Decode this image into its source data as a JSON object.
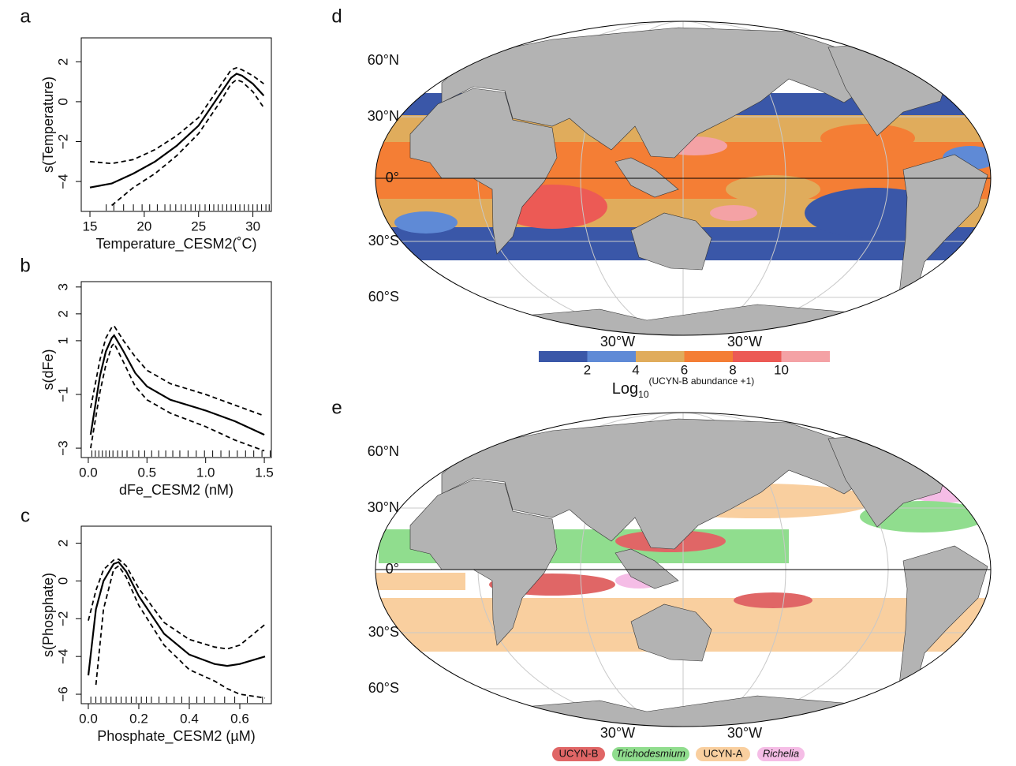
{
  "chart_data": [
    {
      "type": "line",
      "panel": "a",
      "xlabel": "Temperature_CESM2(˚C)",
      "ylabel": "s(Temperature)",
      "xlim": [
        14.2,
        31.7
      ],
      "ylim": [
        -5.5,
        3.2
      ],
      "xticks": [
        15,
        20,
        25,
        30
      ],
      "yticks": [
        {
          "value": -4,
          "label": "−4"
        },
        {
          "value": -2,
          "label": "−2"
        },
        0,
        2
      ],
      "x": [
        15,
        17,
        19,
        21,
        23,
        25,
        27,
        28,
        28.5,
        29,
        30,
        31
      ],
      "series": [
        {
          "color": "#000000",
          "dashed": false,
          "values": [
            -4.3,
            -4.1,
            -3.6,
            -3.0,
            -2.2,
            -1.2,
            0.4,
            1.2,
            1.4,
            1.3,
            0.9,
            0.3
          ]
        },
        {
          "color": "#000000",
          "dashed": true,
          "values": [
            -3.0,
            -3.1,
            -2.9,
            -2.4,
            -1.7,
            -0.8,
            0.8,
            1.6,
            1.7,
            1.6,
            1.3,
            0.9
          ]
        },
        {
          "color": "#000000",
          "dashed": true,
          "values": [
            null,
            -5.2,
            -4.3,
            -3.6,
            -2.7,
            -1.6,
            0.0,
            0.9,
            1.1,
            1.0,
            0.5,
            -0.3
          ]
        }
      ],
      "rug": [
        16.5,
        17.2,
        18.1,
        19.0,
        19.8,
        20.5,
        21.2,
        21.9,
        22.4,
        22.9,
        23.4,
        23.8,
        24.3,
        24.7,
        25.1,
        25.6,
        26.0,
        26.4,
        26.8,
        27.2,
        27.6,
        28.0,
        28.4,
        28.8,
        29.2,
        29.6,
        30.0,
        30.4,
        30.8,
        31.2,
        31.5
      ]
    },
    {
      "type": "line",
      "panel": "b",
      "xlabel": "dFe_CESM2 (nM)",
      "ylabel": "s(dFe)",
      "xlim": [
        -0.06,
        1.56
      ],
      "ylim": [
        -3.35,
        3.2
      ],
      "xticks": [
        {
          "value": 0,
          "label": "0.0"
        },
        0.5,
        {
          "value": 1,
          "label": "1.0"
        },
        1.5
      ],
      "yticks": [
        {
          "value": -3,
          "label": "−3"
        },
        {
          "value": -1,
          "label": "−1"
        },
        1,
        2,
        3
      ],
      "x": [
        0.02,
        0.1,
        0.15,
        0.2,
        0.22,
        0.3,
        0.4,
        0.5,
        0.7,
        1.0,
        1.25,
        1.5
      ],
      "series": [
        {
          "color": "#000000",
          "dashed": false,
          "values": [
            -2.5,
            -0.3,
            0.6,
            1.1,
            1.2,
            0.6,
            -0.2,
            -0.7,
            -1.2,
            -1.6,
            -2.0,
            -2.5
          ]
        },
        {
          "color": "#000000",
          "dashed": true,
          "values": [
            -1.5,
            0.3,
            1.1,
            1.5,
            1.55,
            1.0,
            0.4,
            -0.1,
            -0.6,
            -1.0,
            -1.4,
            -1.8
          ]
        },
        {
          "color": "#000000",
          "dashed": true,
          "values": [
            -3.0,
            -0.9,
            0.1,
            0.8,
            0.9,
            0.2,
            -0.7,
            -1.2,
            -1.7,
            -2.2,
            -2.7,
            -3.1
          ]
        }
      ],
      "rug": [
        0.03,
        0.06,
        0.09,
        0.12,
        0.15,
        0.18,
        0.21,
        0.25,
        0.29,
        0.33,
        0.38,
        0.43,
        0.48,
        0.54,
        0.6,
        0.66,
        0.72,
        0.78,
        0.85,
        0.92,
        0.99,
        1.06,
        1.13,
        1.2,
        1.27,
        1.34,
        1.41,
        1.48,
        1.55
      ]
    },
    {
      "type": "line",
      "panel": "c",
      "xlabel": "Phosphate_CESM2 (µM)",
      "ylabel": "s(Phosphate)",
      "xlim": [
        -0.028,
        0.725
      ],
      "ylim": [
        -6.5,
        2.9
      ],
      "xticks": [
        {
          "value": 0,
          "label": "0.0"
        },
        0.2,
        0.4,
        0.6
      ],
      "yticks": [
        {
          "value": -6,
          "label": "−6"
        },
        {
          "value": -4,
          "label": "−4"
        },
        {
          "value": -2,
          "label": "−2"
        },
        0,
        2
      ],
      "x": [
        0.0,
        0.03,
        0.06,
        0.1,
        0.12,
        0.15,
        0.2,
        0.3,
        0.4,
        0.5,
        0.55,
        0.6,
        0.7
      ],
      "series": [
        {
          "color": "#000000",
          "dashed": false,
          "values": [
            -5.0,
            -1.5,
            0.0,
            0.9,
            1.0,
            0.5,
            -0.8,
            -2.8,
            -3.9,
            -4.4,
            -4.5,
            -4.4,
            -4.0
          ]
        },
        {
          "color": "#000000",
          "dashed": true,
          "values": [
            -2.1,
            -0.5,
            0.6,
            1.1,
            1.15,
            0.8,
            -0.4,
            -2.2,
            -3.1,
            -3.5,
            -3.6,
            -3.4,
            -2.3
          ]
        },
        {
          "color": "#000000",
          "dashed": true,
          "values": [
            null,
            -5.5,
            -1.5,
            0.6,
            0.8,
            0.2,
            -1.3,
            -3.4,
            -4.7,
            -5.3,
            -5.7,
            -6.0,
            -6.2
          ]
        }
      ],
      "rug": [
        0.01,
        0.03,
        0.05,
        0.07,
        0.09,
        0.11,
        0.13,
        0.15,
        0.17,
        0.19,
        0.21,
        0.23,
        0.25,
        0.28,
        0.31,
        0.34,
        0.37,
        0.4,
        0.43,
        0.46,
        0.5,
        0.54,
        0.58,
        0.63,
        0.69
      ]
    },
    {
      "type": "map",
      "panel": "d",
      "lat_labels": [
        "60°N",
        "30°N",
        "0°",
        "30°S",
        "60°S"
      ],
      "lon_labels": [
        "30°W",
        "30°W"
      ],
      "colorbar": {
        "label": "Log",
        "label_sub": "10",
        "label_sup": "(UCYN-B abundance +1)",
        "lim": [
          0,
          12
        ],
        "ticks": [
          2,
          4,
          6,
          8,
          10
        ],
        "colors": [
          "#3a57a8",
          "#5f8ad6",
          "#e0ac5c",
          "#f47e35",
          "#ec5a55",
          "#f4a2a5"
        ]
      }
    },
    {
      "type": "map",
      "panel": "e",
      "lat_labels": [
        "60°N",
        "30°N",
        "0°",
        "30°S",
        "60°S"
      ],
      "lon_labels": [
        "30°W",
        "30°W"
      ],
      "legend": [
        {
          "name": "UCYN-B",
          "color": "#e06666",
          "italic": false
        },
        {
          "name": "Trichodesmium",
          "color": "#90dd8e",
          "italic": true
        },
        {
          "name": "UCYN-A",
          "color": "#f9cf9f",
          "italic": false
        },
        {
          "name": "Richelia",
          "color": "#f5bde6",
          "italic": true
        }
      ]
    }
  ]
}
